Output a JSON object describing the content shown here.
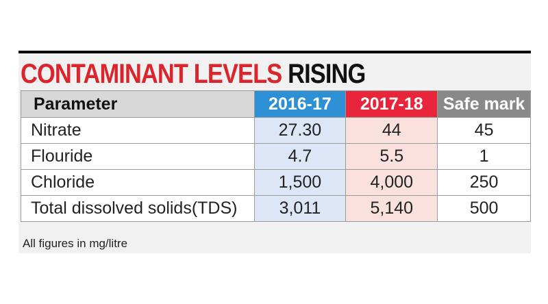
{
  "chart_data": {
    "type": "table",
    "title_part1": "CONTAMINANT LEVELS",
    "title_part2": "RISING",
    "columns": [
      "Parameter",
      "2016-17",
      "2017-18",
      "Safe mark"
    ],
    "rows": [
      [
        "Nitrate",
        "27.30",
        "44",
        "45"
      ],
      [
        "Flouride",
        "4.7",
        "5.5",
        "1"
      ],
      [
        "Chloride",
        "1,500",
        "4,000",
        "250"
      ],
      [
        "Total dissolved solids(TDS)",
        "3,011",
        "5,140",
        "500"
      ]
    ],
    "note": "All figures in mg/litre"
  },
  "colors": {
    "title_accent": "#d9252b",
    "col_2016_17_header": "#2d8fd4",
    "col_2017_18_header": "#e8253a",
    "safe_mark_header": "#898989",
    "col_2016_17_cells": "#dde6f7",
    "col_2017_18_cells": "#fbe1de"
  }
}
